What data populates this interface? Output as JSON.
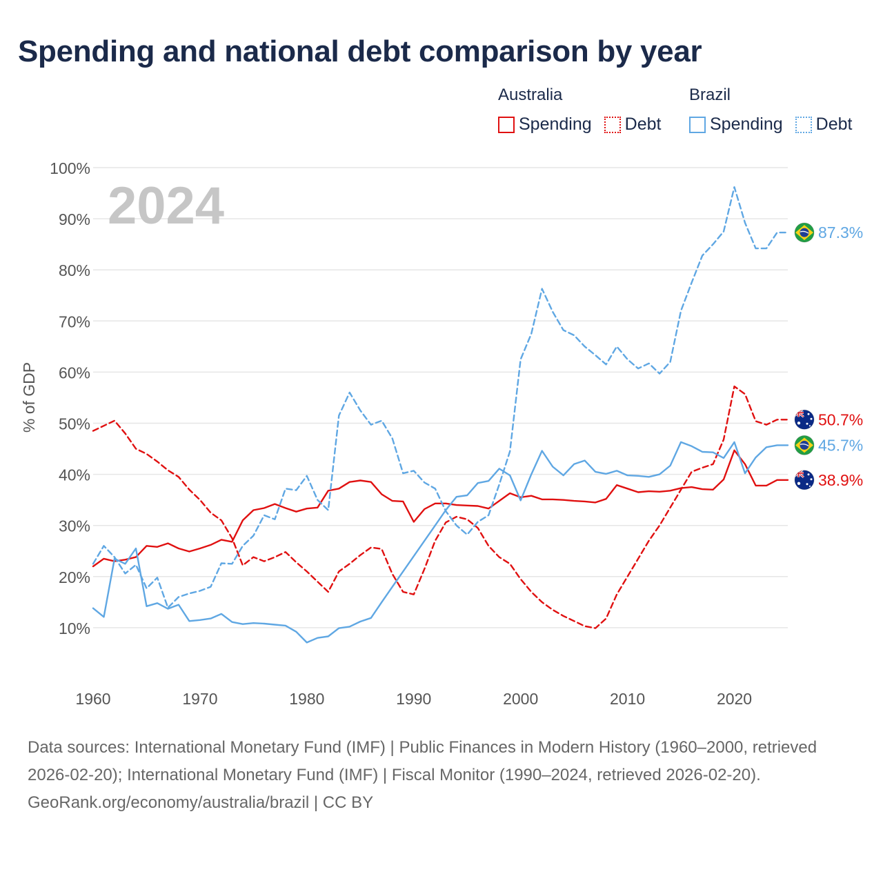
{
  "title": "Spending and national debt comparison by year",
  "legend": {
    "australia": {
      "country": "Australia",
      "spending": "Spending",
      "debt": "Debt"
    },
    "brazil": {
      "country": "Brazil",
      "spending": "Spending",
      "debt": "Debt"
    }
  },
  "colors": {
    "australia": "#e01010",
    "brazil": "#5fa7e3",
    "grid": "#e6e6e6",
    "year_watermark": "#c6c6c6",
    "text": "#1b2a4a",
    "axis_text": "#555555"
  },
  "chart_data": {
    "type": "line",
    "year_label": "2024",
    "ylabel": "% of GDP",
    "ylim": [
      0,
      100
    ],
    "xlim": [
      1960,
      2025
    ],
    "y_ticks": [
      10,
      20,
      30,
      40,
      50,
      60,
      70,
      80,
      90,
      100
    ],
    "y_tick_labels": [
      "10%",
      "20%",
      "30%",
      "40%",
      "50%",
      "60%",
      "70%",
      "80%",
      "90%",
      "100%"
    ],
    "x_ticks": [
      1960,
      1970,
      1980,
      1990,
      2000,
      2010,
      2020
    ],
    "x_tick_labels": [
      "1960",
      "1970",
      "1980",
      "1990",
      "2000",
      "2010",
      "2020"
    ],
    "series": [
      {
        "name": "Australia Debt",
        "country": "Australia",
        "measure": "Debt",
        "style": "dashed",
        "color": "#e01010",
        "end_label": "50.7%",
        "flag": "australia-flag",
        "points": [
          [
            1960,
            48.5
          ],
          [
            1961,
            49.5
          ],
          [
            1962,
            50.5
          ],
          [
            1963,
            48
          ],
          [
            1964,
            45
          ],
          [
            1965,
            44
          ],
          [
            1966,
            42.5
          ],
          [
            1967,
            40.8
          ],
          [
            1968,
            39.5
          ],
          [
            1969,
            37
          ],
          [
            1970,
            35
          ],
          [
            1971,
            32.5
          ],
          [
            1972,
            31
          ],
          [
            1973,
            27.5
          ],
          [
            1974,
            22.2
          ],
          [
            1975,
            23.8
          ],
          [
            1976,
            23
          ],
          [
            1977,
            23.8
          ],
          [
            1978,
            24.8
          ],
          [
            1979,
            22.8
          ],
          [
            1980,
            21
          ],
          [
            1981,
            19
          ],
          [
            1982,
            17
          ],
          [
            1983,
            21
          ],
          [
            1984,
            22.5
          ],
          [
            1985,
            24.2
          ],
          [
            1986,
            25.7
          ],
          [
            1987,
            25.4
          ],
          [
            1988,
            20.5
          ],
          [
            1989,
            17
          ],
          [
            1990,
            16.5
          ],
          [
            1991,
            21.5
          ],
          [
            1992,
            27
          ],
          [
            1993,
            30.6
          ],
          [
            1994,
            31.7
          ],
          [
            1995,
            31.2
          ],
          [
            1996,
            29.5
          ],
          [
            1997,
            26
          ],
          [
            1998,
            23.8
          ],
          [
            1999,
            22.5
          ],
          [
            2000,
            19.5
          ],
          [
            2001,
            17
          ],
          [
            2002,
            15
          ],
          [
            2003,
            13.5
          ],
          [
            2004,
            12.3
          ],
          [
            2005,
            11.3
          ],
          [
            2006,
            10.3
          ],
          [
            2007,
            9.9
          ],
          [
            2008,
            11.8
          ],
          [
            2009,
            16.5
          ],
          [
            2010,
            20
          ],
          [
            2011,
            23.5
          ],
          [
            2012,
            27
          ],
          [
            2013,
            30
          ],
          [
            2014,
            33.5
          ],
          [
            2015,
            37
          ],
          [
            2016,
            40.5
          ],
          [
            2017,
            41.3
          ],
          [
            2018,
            42
          ],
          [
            2019,
            46.8
          ],
          [
            2020,
            57.2
          ],
          [
            2021,
            55.7
          ],
          [
            2022,
            50.4
          ],
          [
            2023,
            49.7
          ],
          [
            2024,
            50.7
          ],
          [
            2025,
            50.7
          ]
        ]
      },
      {
        "name": "Australia Spending",
        "country": "Australia",
        "measure": "Spending",
        "style": "solid",
        "color": "#e01010",
        "end_label": "38.9%",
        "flag": "australia-flag",
        "points": [
          [
            1960,
            22
          ],
          [
            1961,
            23.5
          ],
          [
            1962,
            23
          ],
          [
            1963,
            23.3
          ],
          [
            1964,
            23.8
          ],
          [
            1965,
            26
          ],
          [
            1966,
            25.8
          ],
          [
            1967,
            26.5
          ],
          [
            1968,
            25.5
          ],
          [
            1969,
            24.9
          ],
          [
            1970,
            25.5
          ],
          [
            1971,
            26.2
          ],
          [
            1972,
            27.2
          ],
          [
            1973,
            26.8
          ],
          [
            1974,
            31
          ],
          [
            1975,
            33
          ],
          [
            1976,
            33.4
          ],
          [
            1977,
            34.2
          ],
          [
            1978,
            33.4
          ],
          [
            1979,
            32.7
          ],
          [
            1980,
            33.3
          ],
          [
            1981,
            33.5
          ],
          [
            1982,
            36.8
          ],
          [
            1983,
            37.2
          ],
          [
            1984,
            38.5
          ],
          [
            1985,
            38.8
          ],
          [
            1986,
            38.5
          ],
          [
            1987,
            36.1
          ],
          [
            1988,
            34.8
          ],
          [
            1989,
            34.7
          ],
          [
            1990,
            30.7
          ],
          [
            1991,
            33.2
          ],
          [
            1992,
            34.3
          ],
          [
            1993,
            34.3
          ],
          [
            1994,
            34
          ],
          [
            1995,
            33.9
          ],
          [
            1996,
            33.8
          ],
          [
            1997,
            33.3
          ],
          [
            1998,
            34.8
          ],
          [
            1999,
            36.3
          ],
          [
            2000,
            35.5
          ],
          [
            2001,
            35.8
          ],
          [
            2002,
            35.1
          ],
          [
            2003,
            35.1
          ],
          [
            2004,
            35
          ],
          [
            2005,
            34.8
          ],
          [
            2006,
            34.7
          ],
          [
            2007,
            34.5
          ],
          [
            2008,
            35.2
          ],
          [
            2009,
            37.9
          ],
          [
            2010,
            37.2
          ],
          [
            2011,
            36.5
          ],
          [
            2012,
            36.7
          ],
          [
            2013,
            36.6
          ],
          [
            2014,
            36.8
          ],
          [
            2015,
            37.3
          ],
          [
            2016,
            37.5
          ],
          [
            2017,
            37.1
          ],
          [
            2018,
            37
          ],
          [
            2019,
            39
          ],
          [
            2020,
            44.7
          ],
          [
            2021,
            42
          ],
          [
            2022,
            37.8
          ],
          [
            2023,
            37.8
          ],
          [
            2024,
            38.9
          ],
          [
            2025,
            38.9
          ]
        ]
      },
      {
        "name": "Brazil Debt",
        "country": "Brazil",
        "measure": "Debt",
        "style": "dashed",
        "color": "#5fa7e3",
        "end_label": "87.3%",
        "flag": "brazil-flag",
        "points": [
          [
            1960,
            22.5
          ],
          [
            1961,
            26
          ],
          [
            1962,
            23.8
          ],
          [
            1963,
            20.6
          ],
          [
            1964,
            22.3
          ],
          [
            1965,
            17.7
          ],
          [
            1966,
            19.8
          ],
          [
            1967,
            13.9
          ],
          [
            1968,
            16
          ],
          [
            1969,
            16.7
          ],
          [
            1970,
            17.2
          ],
          [
            1971,
            18
          ],
          [
            1972,
            22.6
          ],
          [
            1973,
            22.5
          ],
          [
            1974,
            26
          ],
          [
            1975,
            28
          ],
          [
            1976,
            32
          ],
          [
            1977,
            31.2
          ],
          [
            1978,
            37.2
          ],
          [
            1979,
            36.9
          ],
          [
            1980,
            39.7
          ],
          [
            1981,
            35
          ],
          [
            1982,
            33
          ],
          [
            1983,
            51.5
          ],
          [
            1984,
            56
          ],
          [
            1985,
            52.5
          ],
          [
            1986,
            49.7
          ],
          [
            1987,
            50.5
          ],
          [
            1988,
            47
          ],
          [
            1989,
            40.2
          ],
          [
            1990,
            40.7
          ],
          [
            1991,
            38.4
          ],
          [
            1992,
            37.2
          ],
          [
            1993,
            32.8
          ],
          [
            1994,
            30
          ],
          [
            1995,
            28.2
          ],
          [
            1996,
            30.7
          ],
          [
            1997,
            32
          ],
          [
            1998,
            38
          ],
          [
            1999,
            44.5
          ],
          [
            2000,
            62.5
          ],
          [
            2001,
            67.5
          ],
          [
            2002,
            76.3
          ],
          [
            2003,
            71.8
          ],
          [
            2004,
            68.2
          ],
          [
            2005,
            67.2
          ],
          [
            2006,
            65
          ],
          [
            2007,
            63.3
          ],
          [
            2008,
            61.5
          ],
          [
            2009,
            65
          ],
          [
            2010,
            62.5
          ],
          [
            2011,
            60.7
          ],
          [
            2012,
            61.7
          ],
          [
            2013,
            59.7
          ],
          [
            2014,
            62
          ],
          [
            2015,
            72
          ],
          [
            2016,
            77.5
          ],
          [
            2017,
            82.8
          ],
          [
            2018,
            85
          ],
          [
            2019,
            87.5
          ],
          [
            2020,
            96.2
          ],
          [
            2021,
            89.2
          ],
          [
            2022,
            84.2
          ],
          [
            2023,
            84.2
          ],
          [
            2024,
            87.3
          ],
          [
            2025,
            87.3
          ]
        ]
      },
      {
        "name": "Brazil Spending",
        "country": "Brazil",
        "measure": "Spending",
        "style": "solid",
        "color": "#5fa7e3",
        "end_label": "45.7%",
        "flag": "brazil-flag",
        "points": [
          [
            1960,
            13.8
          ],
          [
            1961,
            12.1
          ],
          [
            1962,
            23.5
          ],
          [
            1963,
            22.5
          ],
          [
            1964,
            25.5
          ],
          [
            1965,
            14.2
          ],
          [
            1966,
            14.8
          ],
          [
            1967,
            13.7
          ],
          [
            1968,
            14.5
          ],
          [
            1969,
            11.3
          ],
          [
            1970,
            11.5
          ],
          [
            1971,
            11.8
          ],
          [
            1972,
            12.7
          ],
          [
            1973,
            11.1
          ],
          [
            1974,
            10.7
          ],
          [
            1975,
            10.9
          ],
          [
            1976,
            10.8
          ],
          [
            1977,
            10.6
          ],
          [
            1978,
            10.4
          ],
          [
            1979,
            9.2
          ],
          [
            1980,
            7.1
          ],
          [
            1981,
            8
          ],
          [
            1982,
            8.3
          ],
          [
            1983,
            9.9
          ],
          [
            1984,
            10.2
          ],
          [
            1985,
            11.2
          ],
          [
            1986,
            11.9
          ],
          [
            1987,
            15
          ],
          [
            1988,
            18
          ],
          [
            1989,
            21
          ],
          [
            1990,
            24
          ],
          [
            1991,
            27
          ],
          [
            1992,
            30
          ],
          [
            1993,
            33
          ],
          [
            1994,
            35.6
          ],
          [
            1995,
            35.9
          ],
          [
            1996,
            38.3
          ],
          [
            1997,
            38.7
          ],
          [
            1998,
            41.1
          ],
          [
            1999,
            39.8
          ],
          [
            2000,
            34.9
          ],
          [
            2001,
            40
          ],
          [
            2002,
            44.6
          ],
          [
            2003,
            41.5
          ],
          [
            2004,
            39.8
          ],
          [
            2005,
            42
          ],
          [
            2006,
            42.7
          ],
          [
            2007,
            40.5
          ],
          [
            2008,
            40.1
          ],
          [
            2009,
            40.7
          ],
          [
            2010,
            39.8
          ],
          [
            2011,
            39.7
          ],
          [
            2012,
            39.5
          ],
          [
            2013,
            40
          ],
          [
            2014,
            41.7
          ],
          [
            2015,
            46.3
          ],
          [
            2016,
            45.5
          ],
          [
            2017,
            44.4
          ],
          [
            2018,
            44.3
          ],
          [
            2019,
            43.2
          ],
          [
            2020,
            46.3
          ],
          [
            2021,
            40.2
          ],
          [
            2022,
            43.3
          ],
          [
            2023,
            45.3
          ],
          [
            2024,
            45.7
          ],
          [
            2025,
            45.7
          ]
        ]
      }
    ]
  },
  "footer": {
    "sources": "Data sources: International Monetary Fund (IMF) | Public Finances in Modern History (1960–2000, retrieved 2026-02-20); International Monetary Fund (IMF) | Fiscal Monitor (1990–2024, retrieved 2026-02-20).",
    "credit": "GeoRank.org/economy/australia/brazil | CC BY"
  }
}
